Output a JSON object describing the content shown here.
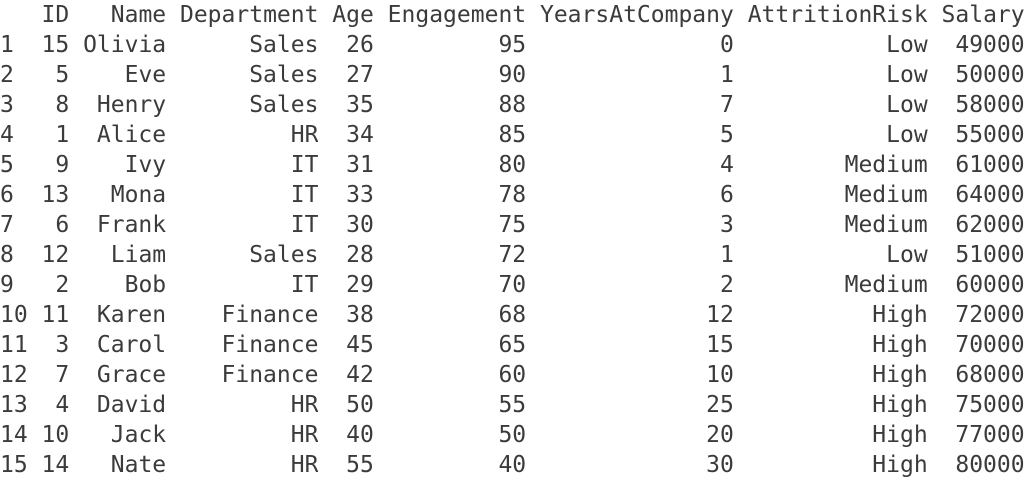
{
  "colors": {
    "text": "#3b3b3b",
    "background": "#ffffff"
  },
  "dataframe": {
    "index_header": "",
    "columns": [
      "ID",
      "Name",
      "Department",
      "Age",
      "Engagement",
      "YearsAtCompany",
      "AttritionRisk",
      "Salary"
    ],
    "rows": [
      {
        "index": "1",
        "id": "15",
        "name": "Olivia",
        "department": "Sales",
        "age": "26",
        "engagement": "95",
        "years_at_company": "0",
        "attrition_risk": "Low",
        "salary": "49000"
      },
      {
        "index": "2",
        "id": "5",
        "name": "Eve",
        "department": "Sales",
        "age": "27",
        "engagement": "90",
        "years_at_company": "1",
        "attrition_risk": "Low",
        "salary": "50000"
      },
      {
        "index": "3",
        "id": "8",
        "name": "Henry",
        "department": "Sales",
        "age": "35",
        "engagement": "88",
        "years_at_company": "7",
        "attrition_risk": "Low",
        "salary": "58000"
      },
      {
        "index": "4",
        "id": "1",
        "name": "Alice",
        "department": "HR",
        "age": "34",
        "engagement": "85",
        "years_at_company": "5",
        "attrition_risk": "Low",
        "salary": "55000"
      },
      {
        "index": "5",
        "id": "9",
        "name": "Ivy",
        "department": "IT",
        "age": "31",
        "engagement": "80",
        "years_at_company": "4",
        "attrition_risk": "Medium",
        "salary": "61000"
      },
      {
        "index": "6",
        "id": "13",
        "name": "Mona",
        "department": "IT",
        "age": "33",
        "engagement": "78",
        "years_at_company": "6",
        "attrition_risk": "Medium",
        "salary": "64000"
      },
      {
        "index": "7",
        "id": "6",
        "name": "Frank",
        "department": "IT",
        "age": "30",
        "engagement": "75",
        "years_at_company": "3",
        "attrition_risk": "Medium",
        "salary": "62000"
      },
      {
        "index": "8",
        "id": "12",
        "name": "Liam",
        "department": "Sales",
        "age": "28",
        "engagement": "72",
        "years_at_company": "1",
        "attrition_risk": "Low",
        "salary": "51000"
      },
      {
        "index": "9",
        "id": "2",
        "name": "Bob",
        "department": "IT",
        "age": "29",
        "engagement": "70",
        "years_at_company": "2",
        "attrition_risk": "Medium",
        "salary": "60000"
      },
      {
        "index": "10",
        "id": "11",
        "name": "Karen",
        "department": "Finance",
        "age": "38",
        "engagement": "68",
        "years_at_company": "12",
        "attrition_risk": "High",
        "salary": "72000"
      },
      {
        "index": "11",
        "id": "3",
        "name": "Carol",
        "department": "Finance",
        "age": "45",
        "engagement": "65",
        "years_at_company": "15",
        "attrition_risk": "High",
        "salary": "70000"
      },
      {
        "index": "12",
        "id": "7",
        "name": "Grace",
        "department": "Finance",
        "age": "42",
        "engagement": "60",
        "years_at_company": "10",
        "attrition_risk": "High",
        "salary": "68000"
      },
      {
        "index": "13",
        "id": "4",
        "name": "David",
        "department": "HR",
        "age": "50",
        "engagement": "55",
        "years_at_company": "25",
        "attrition_risk": "High",
        "salary": "75000"
      },
      {
        "index": "14",
        "id": "10",
        "name": "Jack",
        "department": "HR",
        "age": "40",
        "engagement": "50",
        "years_at_company": "20",
        "attrition_risk": "High",
        "salary": "77000"
      },
      {
        "index": "15",
        "id": "14",
        "name": "Nate",
        "department": "HR",
        "age": "55",
        "engagement": "40",
        "years_at_company": "30",
        "attrition_risk": "High",
        "salary": "80000"
      }
    ]
  }
}
